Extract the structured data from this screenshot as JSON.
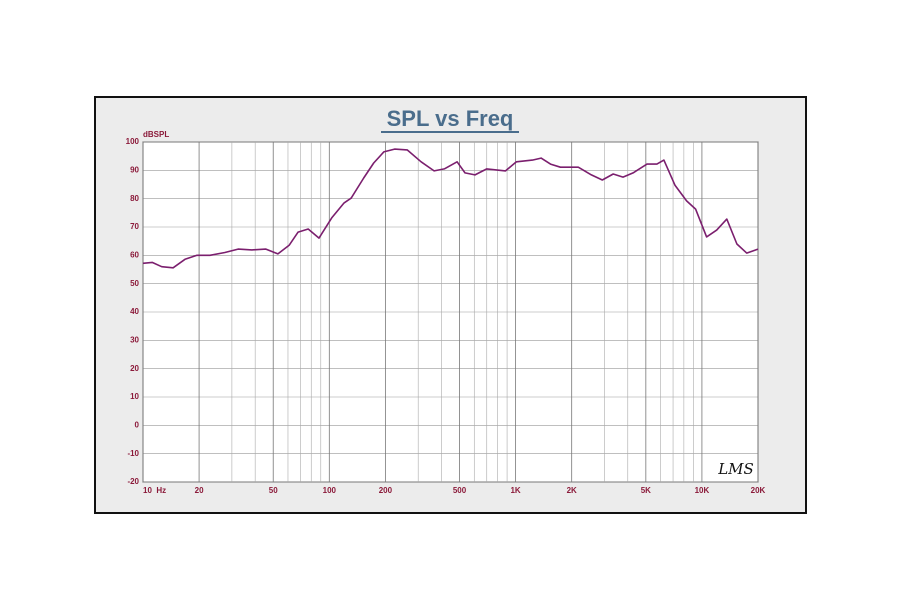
{
  "chart_data": {
    "type": "line",
    "title": "SPL vs Freq",
    "y_label": "dBSPL",
    "annotation": "LMS",
    "x": [
      10,
      11.2,
      12.6,
      14.5,
      16.8,
      19.5,
      22.9,
      27.5,
      32.4,
      38.4,
      45.7,
      53,
      61,
      68,
      77,
      88,
      103,
      120,
      131,
      153,
      173,
      196,
      224,
      262,
      311,
      365,
      414,
      485,
      535,
      605,
      700,
      883,
      1010,
      1230,
      1370,
      1540,
      1740,
      2170,
      2550,
      2920,
      3340,
      3770,
      4270,
      5070,
      5730,
      6250,
      7160,
      8280,
      9250,
      10600,
      12000,
      13600,
      15400,
      17400,
      20000
    ],
    "values": [
      57.2,
      57.5,
      56,
      55.6,
      58.6,
      60,
      60,
      61,
      62.2,
      61.9,
      62.2,
      60.5,
      63.6,
      68.2,
      69.3,
      66.1,
      73.2,
      78.5,
      80.2,
      87.3,
      92.6,
      96.5,
      97.5,
      97.2,
      93,
      89.8,
      90.5,
      93,
      89.1,
      88.4,
      90.5,
      89.8,
      93,
      93.6,
      94.3,
      92.2,
      91.1,
      91.1,
      88.4,
      86.6,
      88.7,
      87.6,
      89.1,
      92.2,
      92.2,
      93.6,
      84.8,
      79.2,
      76.3,
      66.5,
      68.9,
      72.8,
      64,
      60.8,
      62.2
    ],
    "color": "#7b1f6e",
    "x_log": true,
    "xlim": [
      10,
      20000
    ],
    "xticks": [
      {
        "value": 10,
        "label": "10  Hz"
      },
      20,
      50,
      100,
      200,
      500,
      {
        "value": 1000,
        "label": "1K"
      },
      {
        "value": 2000,
        "label": "2K"
      },
      {
        "value": 5000,
        "label": "5K"
      },
      {
        "value": 10000,
        "label": "10K"
      },
      {
        "value": 20000,
        "label": "20K"
      }
    ],
    "xgrid_minor": [
      30,
      40,
      60,
      70,
      80,
      90,
      300,
      400,
      600,
      700,
      800,
      900,
      3000,
      4000,
      6000,
      7000,
      8000,
      9000
    ],
    "ylim": [
      -20,
      100
    ],
    "yticks": [
      -20,
      -10,
      0,
      10,
      20,
      30,
      40,
      50,
      60,
      70,
      80,
      90,
      100
    ],
    "grid": true
  }
}
